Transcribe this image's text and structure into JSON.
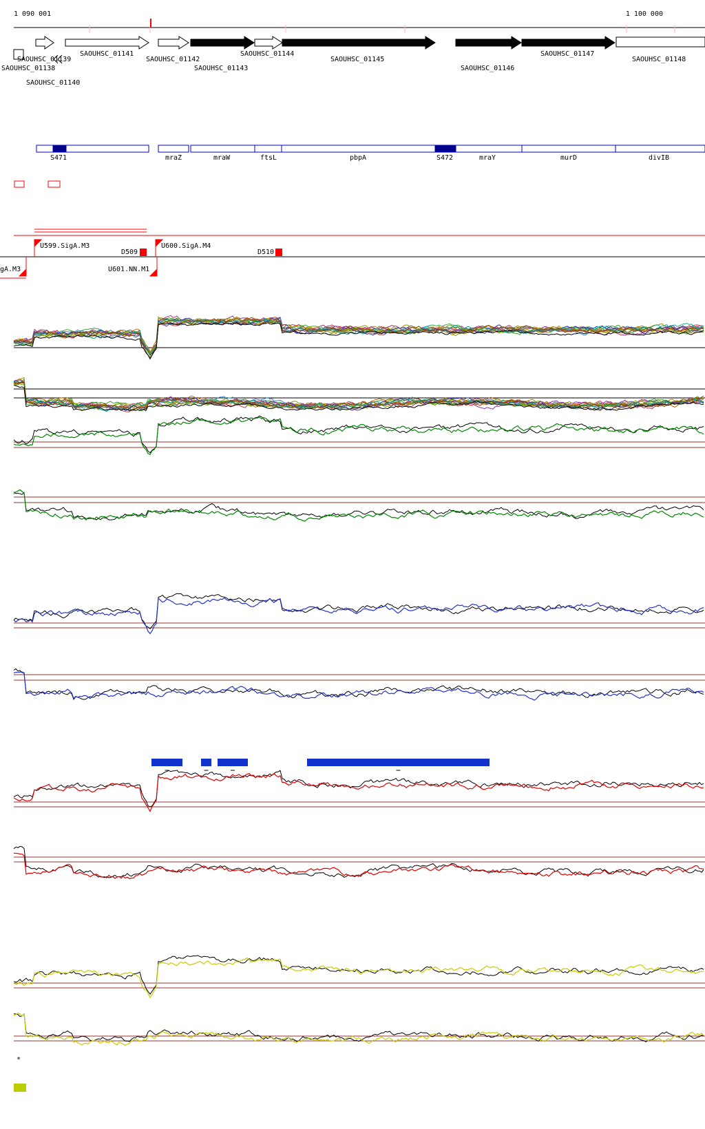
{
  "browser": {
    "coord_start": "1 090 001",
    "coord_end": "1 100 000",
    "colors": {
      "forward_gene_fill": "#ffffff",
      "reverse_gene_fill": "#000000",
      "feature_box": "#0000cc",
      "feature_box_fill": "#000088",
      "promoter": "#ff0000",
      "green_track": "#008800",
      "blue_track": "#2233cc",
      "red_track": "#dd0000",
      "yellow_track": "#cccc00",
      "baseline": "#993333",
      "legend_swatch": "#bbcc00"
    },
    "genes": [
      {
        "name": "SAOUHSC_01138",
        "strand": "+"
      },
      {
        "name": "SAOUHSC_01139",
        "strand": "+"
      },
      {
        "name": "SAOUHSC_01140",
        "strand": "-"
      },
      {
        "name": "SAOUHSC_01141",
        "strand": "+"
      },
      {
        "name": "SAOUHSC_01142",
        "strand": "+"
      },
      {
        "name": "SAOUHSC_01143",
        "strand": "+"
      },
      {
        "name": "SAOUHSC_01144",
        "strand": "+"
      },
      {
        "name": "SAOUHSC_01145",
        "strand": "+"
      },
      {
        "name": "SAOUHSC_01146",
        "strand": "+"
      },
      {
        "name": "SAOUHSC_01147",
        "strand": "+"
      },
      {
        "name": "SAOUHSC_01148",
        "strand": "+"
      }
    ],
    "features": [
      "S471",
      "mraZ",
      "mraW",
      "ftsL",
      "pbpA",
      "S472",
      "mraY",
      "murD",
      "divIB"
    ],
    "promoters": [
      "U599.SigA.M3",
      "U600.SigA.M4",
      "D509",
      "D510",
      "U601.NN.M1",
      "gA.M3"
    ],
    "legend": {
      "marker": "*"
    }
  },
  "chart_data": {
    "type": "line",
    "title": "",
    "xlabel": "",
    "ylabel": "",
    "x_range": [
      1090001,
      1100000
    ],
    "tracks": [
      {
        "id": "multi-condition-forward",
        "color": "multi"
      },
      {
        "id": "multi-condition-reverse",
        "color": "multi"
      },
      {
        "id": "green-forward",
        "color": "#008800"
      },
      {
        "id": "green-reverse",
        "color": "#008800"
      },
      {
        "id": "blue-forward",
        "color": "#2233cc"
      },
      {
        "id": "blue-reverse",
        "color": "#2233cc"
      },
      {
        "id": "red-forward",
        "color": "#dd0000"
      },
      {
        "id": "red-reverse",
        "color": "#dd0000"
      },
      {
        "id": "yellow-forward",
        "color": "#cccc00"
      },
      {
        "id": "yellow-reverse",
        "color": "#cccc00"
      }
    ]
  }
}
